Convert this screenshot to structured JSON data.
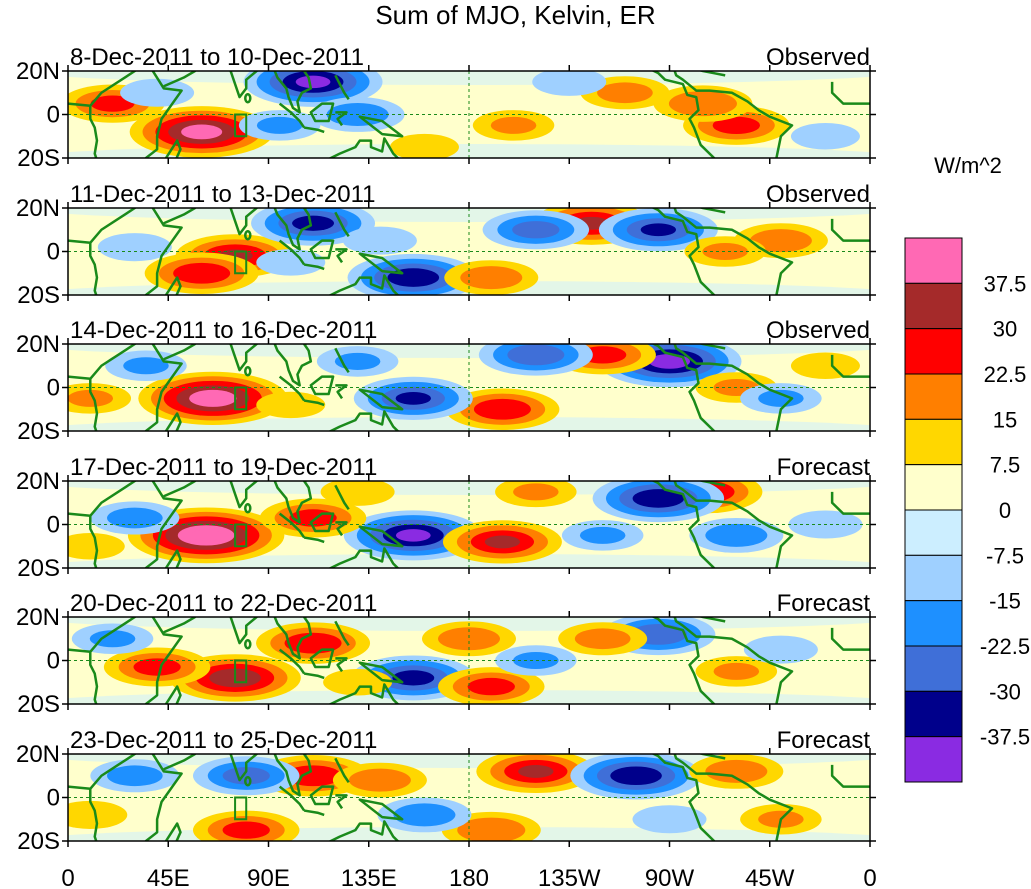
{
  "title": "Sum of MJO, Kelvin, ER",
  "chart_data": {
    "type": "heatmap",
    "title": "Sum of MJO, Kelvin, ER",
    "variable_units": "W/m^2",
    "x_axis": {
      "ticks": [
        "0",
        "45E",
        "90E",
        "135E",
        "180",
        "135W",
        "90W",
        "45W",
        "0"
      ],
      "tick_values_lon": [
        0,
        45,
        90,
        135,
        180,
        225,
        270,
        315,
        360
      ]
    },
    "y_axis": {
      "ticks": [
        "20N",
        "0",
        "20S"
      ],
      "tick_values_lat": [
        20,
        0,
        -20
      ]
    },
    "colorbar": {
      "labels": [
        "37.5",
        "30",
        "22.5",
        "15",
        "7.5",
        "0",
        "-7.5",
        "-15",
        "-22.5",
        "-30",
        "-37.5"
      ],
      "level_values": [
        37.5,
        30,
        22.5,
        15,
        7.5,
        0,
        -7.5,
        -15,
        -22.5,
        -30,
        -37.5
      ],
      "colors": [
        "#ff69b4",
        "#a52a2a",
        "#ff0000",
        "#ff7f00",
        "#ffd700",
        "#ffffcc",
        "#cceeff",
        "#9fd0ff",
        "#1e90ff",
        "#3f6fd8",
        "#00008b",
        "#8a2be2"
      ]
    },
    "panels": [
      {
        "period": "8-Dec-2011 to 10-Dec-2011",
        "status": "Observed",
        "blobs": [
          {
            "lon": 60,
            "lat": -8,
            "value": 40
          },
          {
            "lon": 20,
            "lat": 5,
            "value": 24
          },
          {
            "lon": 110,
            "lat": 15,
            "value": -38
          },
          {
            "lon": 300,
            "lat": -5,
            "value": 25
          },
          {
            "lon": 285,
            "lat": 5,
            "value": 22
          },
          {
            "lon": 250,
            "lat": 10,
            "value": 18
          },
          {
            "lon": 200,
            "lat": -5,
            "value": 15
          },
          {
            "lon": 130,
            "lat": 0,
            "value": -20
          },
          {
            "lon": 95,
            "lat": -5,
            "value": -15
          },
          {
            "lon": 40,
            "lat": 10,
            "value": -12
          },
          {
            "lon": 225,
            "lat": 15,
            "value": -12
          },
          {
            "lon": 340,
            "lat": -10,
            "value": -10
          },
          {
            "lon": 160,
            "lat": -15,
            "value": 10
          }
        ]
      },
      {
        "period": "11-Dec-2011 to 13-Dec-2011",
        "status": "Observed",
        "blobs": [
          {
            "lon": 75,
            "lat": -2,
            "value": 30
          },
          {
            "lon": 60,
            "lat": -10,
            "value": 28
          },
          {
            "lon": 235,
            "lat": 13,
            "value": 30
          },
          {
            "lon": 265,
            "lat": 10,
            "value": -30
          },
          {
            "lon": 110,
            "lat": 13,
            "value": -32
          },
          {
            "lon": 155,
            "lat": -12,
            "value": -35
          },
          {
            "lon": 210,
            "lat": 10,
            "value": -25
          },
          {
            "lon": 320,
            "lat": 5,
            "value": 20
          },
          {
            "lon": 295,
            "lat": 0,
            "value": 15
          },
          {
            "lon": 190,
            "lat": -12,
            "value": 20
          },
          {
            "lon": 30,
            "lat": 2,
            "value": -12
          },
          {
            "lon": 100,
            "lat": -5,
            "value": -10
          },
          {
            "lon": 140,
            "lat": 5,
            "value": -12
          }
        ]
      },
      {
        "period": "14-Dec-2011 to 16-Dec-2011",
        "status": "Observed",
        "blobs": [
          {
            "lon": 65,
            "lat": -5,
            "value": 42
          },
          {
            "lon": 270,
            "lat": 12,
            "value": -40
          },
          {
            "lon": 195,
            "lat": -10,
            "value": 28
          },
          {
            "lon": 240,
            "lat": 15,
            "value": 25
          },
          {
            "lon": 155,
            "lat": -5,
            "value": -30
          },
          {
            "lon": 210,
            "lat": 15,
            "value": -28
          },
          {
            "lon": 10,
            "lat": -5,
            "value": 15
          },
          {
            "lon": 300,
            "lat": 0,
            "value": 15
          },
          {
            "lon": 320,
            "lat": -5,
            "value": -15
          },
          {
            "lon": 35,
            "lat": 10,
            "value": -15
          },
          {
            "lon": 130,
            "lat": 12,
            "value": -15
          },
          {
            "lon": 100,
            "lat": -8,
            "value": 10
          },
          {
            "lon": 340,
            "lat": 10,
            "value": 10
          }
        ]
      },
      {
        "period": "17-Dec-2011 to 19-Dec-2011",
        "status": "Forecast",
        "blobs": [
          {
            "lon": 62,
            "lat": -5,
            "value": 45
          },
          {
            "lon": 155,
            "lat": -5,
            "value": -38
          },
          {
            "lon": 195,
            "lat": -8,
            "value": 30
          },
          {
            "lon": 285,
            "lat": 15,
            "value": 30
          },
          {
            "lon": 265,
            "lat": 12,
            "value": -35
          },
          {
            "lon": 110,
            "lat": 3,
            "value": 25
          },
          {
            "lon": 30,
            "lat": 3,
            "value": -18
          },
          {
            "lon": 210,
            "lat": 15,
            "value": 15
          },
          {
            "lon": 300,
            "lat": -5,
            "value": -20
          },
          {
            "lon": 240,
            "lat": -5,
            "value": -15
          },
          {
            "lon": 340,
            "lat": 0,
            "value": -12
          },
          {
            "lon": 130,
            "lat": 15,
            "value": 12
          },
          {
            "lon": 10,
            "lat": -10,
            "value": 10
          }
        ]
      },
      {
        "period": "20-Dec-2011 to 22-Dec-2011",
        "status": "Forecast",
        "blobs": [
          {
            "lon": 75,
            "lat": -8,
            "value": 35
          },
          {
            "lon": 40,
            "lat": -3,
            "value": 25
          },
          {
            "lon": 110,
            "lat": 8,
            "value": 28
          },
          {
            "lon": 155,
            "lat": -8,
            "value": -32
          },
          {
            "lon": 190,
            "lat": -12,
            "value": 25
          },
          {
            "lon": 265,
            "lat": 12,
            "value": -28
          },
          {
            "lon": 180,
            "lat": 10,
            "value": 20
          },
          {
            "lon": 240,
            "lat": 10,
            "value": 18
          },
          {
            "lon": 20,
            "lat": 10,
            "value": -15
          },
          {
            "lon": 300,
            "lat": -5,
            "value": 15
          },
          {
            "lon": 320,
            "lat": 5,
            "value": -12
          },
          {
            "lon": 210,
            "lat": 0,
            "value": -15
          },
          {
            "lon": 130,
            "lat": -10,
            "value": 10
          }
        ]
      },
      {
        "period": "23-Dec-2011 to 25-Dec-2011",
        "status": "Forecast",
        "blobs": [
          {
            "lon": 110,
            "lat": 10,
            "value": 28
          },
          {
            "lon": 210,
            "lat": 12,
            "value": 30
          },
          {
            "lon": 255,
            "lat": 10,
            "value": -35
          },
          {
            "lon": 80,
            "lat": 10,
            "value": -25
          },
          {
            "lon": 140,
            "lat": 8,
            "value": 20
          },
          {
            "lon": 80,
            "lat": -15,
            "value": 25
          },
          {
            "lon": 190,
            "lat": -15,
            "value": 22
          },
          {
            "lon": 160,
            "lat": -8,
            "value": -20
          },
          {
            "lon": 30,
            "lat": 10,
            "value": -18
          },
          {
            "lon": 300,
            "lat": 12,
            "value": 20
          },
          {
            "lon": 320,
            "lat": -10,
            "value": 15
          },
          {
            "lon": 10,
            "lat": -8,
            "value": 12
          },
          {
            "lon": 270,
            "lat": -10,
            "value": -12
          }
        ]
      }
    ]
  }
}
